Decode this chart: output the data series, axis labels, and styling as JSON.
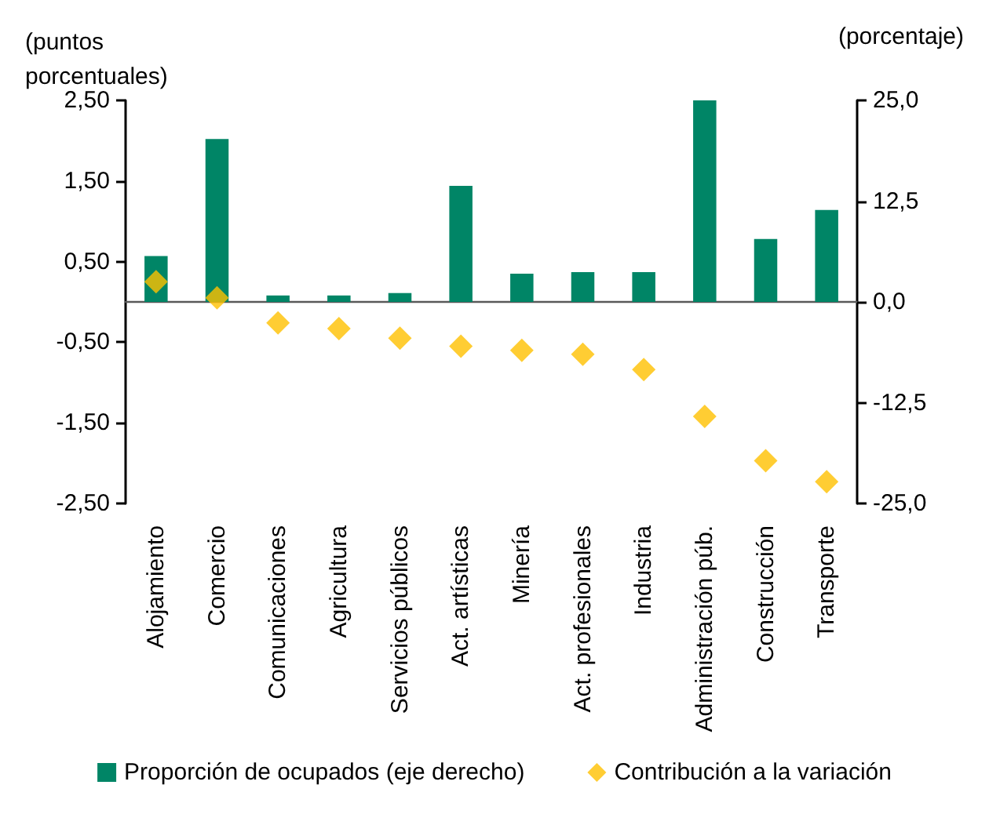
{
  "chart_data": {
    "type": "bar",
    "ylabel": "(puntos porcentuales)",
    "y2label": "(porcentaje)",
    "categories": [
      "Alojamiento",
      "Comercio",
      "Comunicaciones",
      "Agricultura",
      "Servicios públicos",
      "Act. artísticas",
      "Minería",
      "Act. profesionales",
      "Industria",
      "Administración púb.",
      "Construcción",
      "Transporte"
    ],
    "series": [
      {
        "name": "Proporción de ocupados (eje derecho)",
        "axis": "y2",
        "color": "#008566",
        "values": [
          5.7,
          20.2,
          0.8,
          0.8,
          1.1,
          14.4,
          3.5,
          3.7,
          3.7,
          25.0,
          7.8,
          11.4
        ]
      },
      {
        "name": "Contribución a la variación",
        "type": "scatter",
        "color": "#ffc000",
        "values": [
          0.25,
          0.05,
          -0.26,
          -0.33,
          -0.45,
          -0.55,
          -0.6,
          -0.65,
          -0.84,
          -1.42,
          -1.97,
          -2.23
        ]
      }
    ],
    "ylim": [
      -2.5,
      2.5
    ],
    "yticks": [
      {
        "value": -2.5,
        "label": "-2,50"
      },
      {
        "value": -1.5,
        "label": "-1,50"
      },
      {
        "value": -0.5,
        "label": "-0,50"
      },
      {
        "value": 0.5,
        "label": "0,50"
      },
      {
        "value": 1.5,
        "label": "1,50"
      },
      {
        "value": 2.5,
        "label": "2,50"
      }
    ],
    "y2lim": [
      -25,
      25
    ],
    "y2ticks": [
      {
        "value": -25,
        "label": "-25,0"
      },
      {
        "value": -12.5,
        "label": "-12,5"
      },
      {
        "value": 0,
        "label": "0,0"
      },
      {
        "value": 12.5,
        "label": "12,5"
      },
      {
        "value": 25,
        "label": "25,0"
      }
    ],
    "marker": "diamond",
    "legend": "bottom"
  }
}
